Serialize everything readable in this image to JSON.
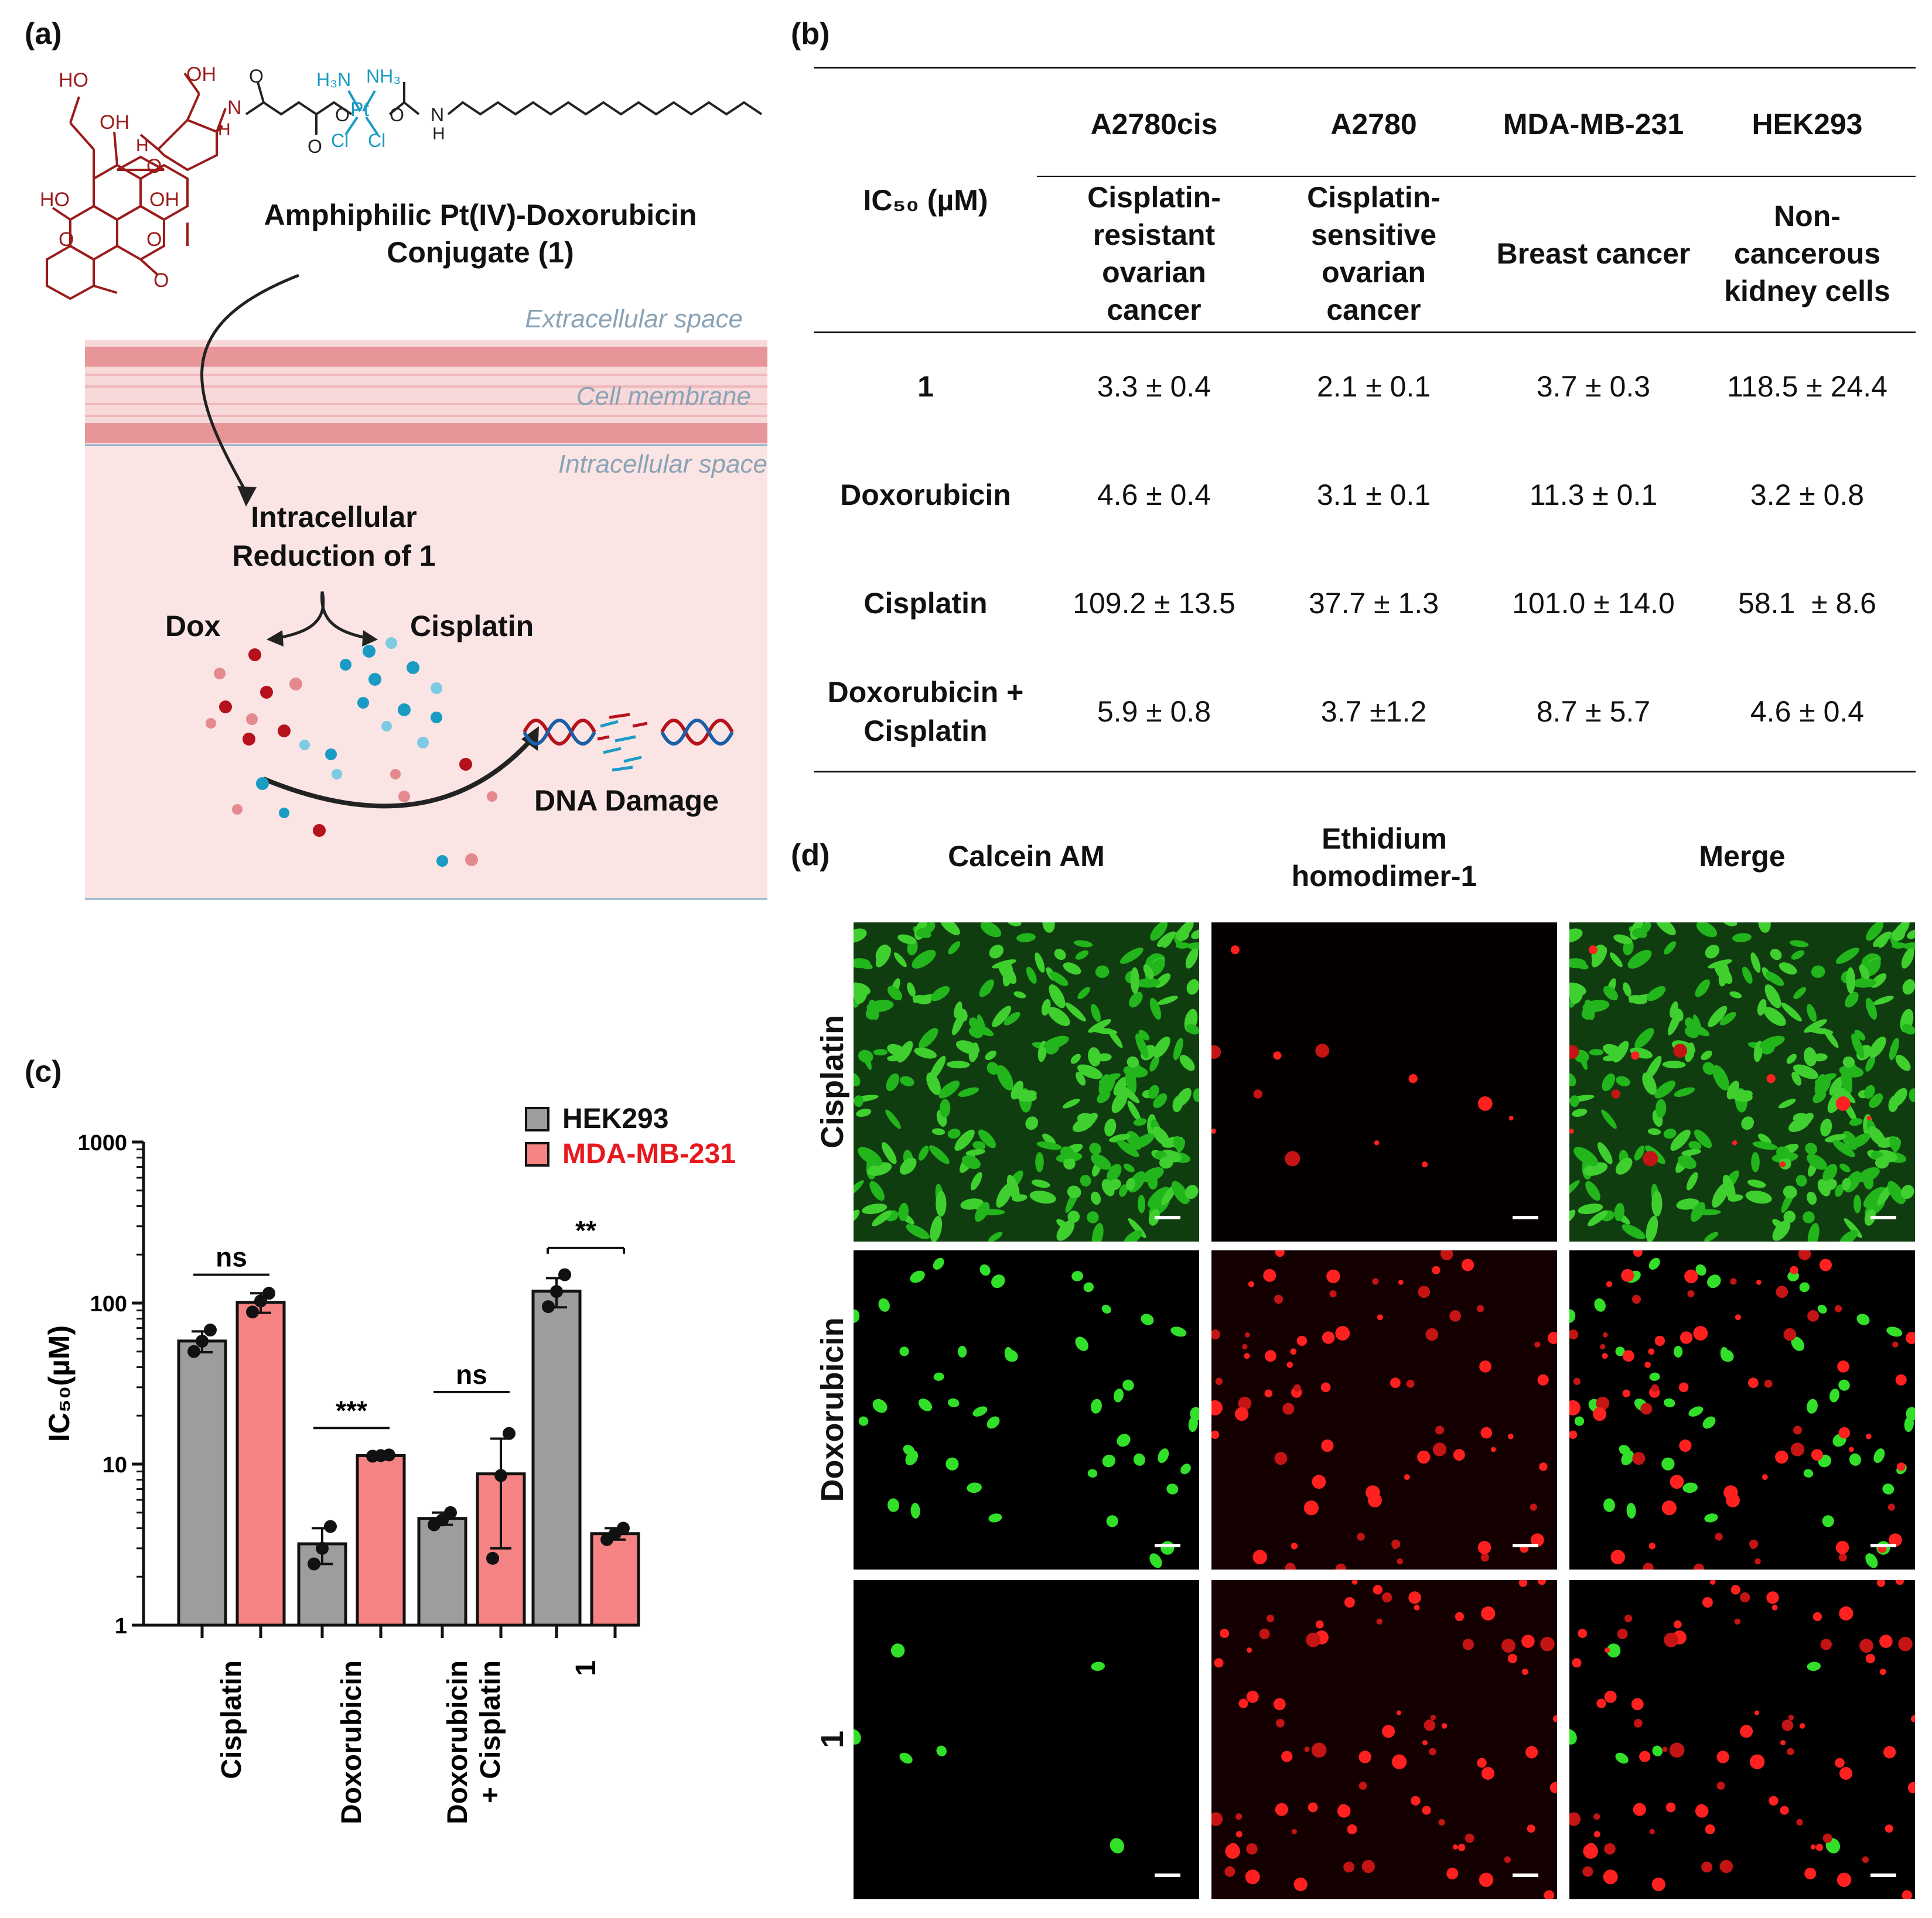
{
  "panels": {
    "a": "(a)",
    "b": "(b)",
    "c": "(c)",
    "d": "(d)"
  },
  "panel_a": {
    "conjugate_title_line1": "Amphiphilic Pt(IV)-Doxorubicin",
    "conjugate_title_line2": "Conjugate (1)",
    "extracellular": "Extracellular space",
    "membrane": "Cell membrane",
    "intracellular": "Intracellular space",
    "reduction_line1": "Intracellular",
    "reduction_line2": "Reduction of 1",
    "dox": "Dox",
    "cisplatin": "Cisplatin",
    "dna_damage": "DNA Damage",
    "chem": {
      "ho1": "HO",
      "oh1": "OH",
      "oh2": "OH",
      "h_a": "H",
      "ho2": "HO",
      "oh3": "OH",
      "o1": "O",
      "o2": "O",
      "o3": "O",
      "o4": "O",
      "n1": "N",
      "h1": "H",
      "h3n": "H₃N",
      "nh3": "NH₃",
      "pt": "Pt",
      "cl1": "Cl",
      "cl2": "Cl",
      "o_pt1": "O",
      "o_pt2": "O",
      "o5": "O",
      "o6": "O",
      "n2": "N",
      "h2": "H"
    },
    "colors": {
      "dox": "#b5121b",
      "pt": "#1a9bc4",
      "membrane": "#e8959a",
      "cytoplasm": "#fbe4e4"
    }
  },
  "table": {
    "rowheader": "IC₅₀ (µM)",
    "columns": [
      {
        "name": "A2780cis",
        "desc": [
          "Cisplatin-",
          "resistant",
          "ovarian",
          "cancer"
        ]
      },
      {
        "name": "A2780",
        "desc": [
          "Cisplatin-",
          "sensitive",
          "ovarian",
          "cancer"
        ]
      },
      {
        "name": "MDA-MB-231",
        "desc": [
          "Breast cancer"
        ]
      },
      {
        "name": "HEK293",
        "desc": [
          "Non-",
          "cancerous",
          "kidney cells"
        ]
      }
    ],
    "rows": [
      {
        "label": [
          "1"
        ],
        "values": [
          "3.3 ± 0.4",
          "2.1 ± 0.1",
          "3.7 ± 0.3",
          "118.5 ± 24.4"
        ]
      },
      {
        "label": [
          "Doxorubicin"
        ],
        "values": [
          "4.6 ± 0.4",
          "3.1 ± 0.1",
          "11.3 ± 0.1",
          "3.2 ± 0.8"
        ]
      },
      {
        "label": [
          "Cisplatin"
        ],
        "values": [
          "109.2 ± 13.5",
          "37.7 ± 1.3",
          "101.0 ± 14.0",
          "58.1  ± 8.6"
        ]
      },
      {
        "label": [
          "Doxorubicin +",
          "Cisplatin"
        ],
        "values": [
          "5.9 ± 0.8",
          "3.7 ±1.2",
          "8.7 ± 5.7",
          "4.6 ± 0.4"
        ]
      }
    ]
  },
  "chart_data": {
    "type": "bar",
    "ylabel": "IC₅₀(µM)",
    "yscale": "log",
    "ylim": [
      1,
      1000
    ],
    "yticks": [
      "1",
      "10",
      "100",
      "1000"
    ],
    "categories": [
      "Cisplatin",
      "Doxorubicin",
      "Doxorubicin\n+ Cisplatin",
      "1"
    ],
    "category_lines": [
      [
        "Cisplatin"
      ],
      [
        "Doxorubicin"
      ],
      [
        "Doxorubicin",
        "+ Cisplatin"
      ],
      [
        "1"
      ]
    ],
    "series": [
      {
        "name": "HEK293",
        "color": "#9d9d9d",
        "values": [
          58.1,
          3.2,
          4.6,
          118.5
        ],
        "err": [
          8.6,
          0.8,
          0.4,
          24.4
        ],
        "points": [
          [
            50,
            58,
            68
          ],
          [
            2.4,
            3.0,
            4.1
          ],
          [
            4.2,
            4.5,
            5.0
          ],
          [
            95,
            118,
            150
          ]
        ]
      },
      {
        "name": "MDA-MB-231",
        "color": "#f68383",
        "values": [
          101.0,
          11.3,
          8.7,
          3.7
        ],
        "err": [
          14.0,
          0.1,
          5.7,
          0.3
        ],
        "points": [
          [
            88,
            103,
            115
          ],
          [
            11.2,
            11.3,
            11.4
          ],
          [
            2.6,
            8.5,
            15.5
          ],
          [
            3.4,
            3.7,
            4.0
          ]
        ]
      }
    ],
    "significance": [
      "ns",
      "***",
      "ns",
      "**"
    ],
    "legend_position": "top-right"
  },
  "panel_d": {
    "columns": [
      "Calcein AM",
      "Ethidium\nhomodimer-1",
      "Merge"
    ],
    "column_lines": [
      [
        "Calcein AM"
      ],
      [
        "Ethidium",
        "homodimer-1"
      ],
      [
        "Merge"
      ]
    ],
    "rows": [
      "Cisplatin",
      "Doxorubicin",
      "1"
    ]
  }
}
